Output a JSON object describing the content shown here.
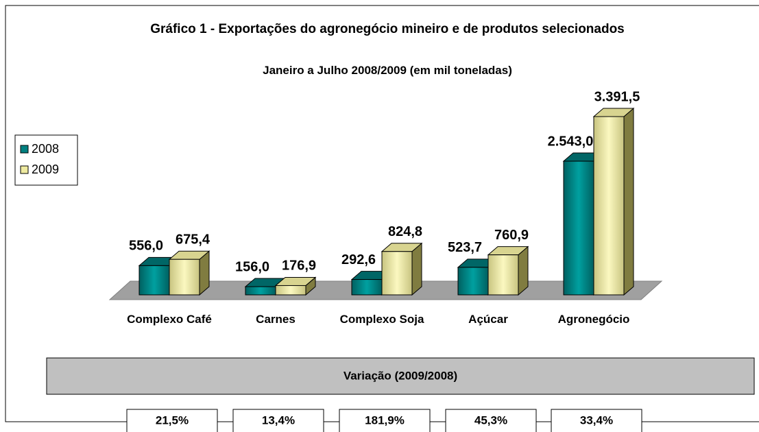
{
  "chart_data": {
    "type": "bar3d",
    "title": "Gráfico 1 - Exportações do agronegócio mineiro e de produtos selecionados",
    "subtitle": "Janeiro a Julho 2008/2009 (em mil toneladas)",
    "categories": [
      "Complexo Café",
      "Carnes",
      "Complexo Soja",
      "Açúcar",
      "Agronegócio"
    ],
    "series": [
      {
        "name": "2008",
        "color": "#008080",
        "values": [
          556.0,
          156.0,
          292.6,
          523.7,
          2543.0
        ],
        "value_labels": [
          "556,0",
          "156,0",
          "292,6",
          "523,7",
          "2.543,0"
        ]
      },
      {
        "name": "2009",
        "color": "#eeeaa0",
        "values": [
          675.4,
          176.9,
          824.8,
          760.9,
          3391.5
        ],
        "value_labels": [
          "675,4",
          "176,9",
          "824,8",
          "760,9",
          "3.391,5"
        ]
      }
    ],
    "legend": "left",
    "variation": {
      "title": "Variação (2009/2008)",
      "values": [
        21.5,
        13.4,
        181.9,
        45.3,
        33.4
      ],
      "value_labels": [
        "21,5%",
        "13,4%",
        "181,9%",
        "45,3%",
        "33,4%"
      ]
    }
  }
}
